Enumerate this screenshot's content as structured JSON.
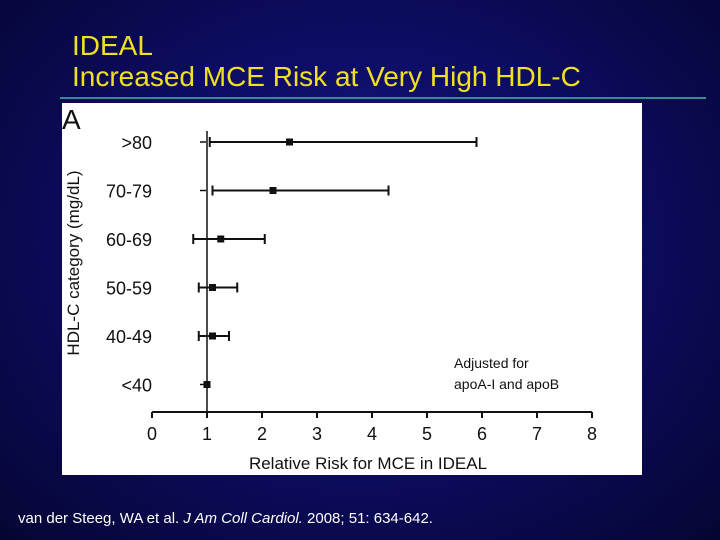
{
  "slide": {
    "title_line1": "IDEAL",
    "title_line2": "Increased MCE Risk at Very High HDL-C",
    "citation_authors": "van der Steeg, WA et al. ",
    "citation_journal": "J Am Coll Cardiol.",
    "citation_details": " 2008; 51: 634-642."
  },
  "colors": {
    "background": "#0d0d66",
    "title": "#f0e020",
    "title_rule": "#2f8f8f",
    "citation": "#ffffff",
    "plot_ink": "#111111"
  },
  "chart_data": {
    "type": "forest-plot",
    "panel_label": "A",
    "title": "",
    "xlabel": "Relative Risk for MCE in IDEAL",
    "ylabel": "HDL-C category (mg/dL)",
    "xlim": [
      0,
      8
    ],
    "x_ticks": [
      "0",
      "1",
      "2",
      "3",
      "4",
      "5",
      "6",
      "7",
      "8"
    ],
    "reference_line_x": 1,
    "categories": [
      ">80",
      "70-79",
      "60-69",
      "50-59",
      "40-49",
      "<40"
    ],
    "estimates": [
      2.5,
      2.2,
      1.25,
      1.1,
      1.1,
      1.0
    ],
    "ci_lower": [
      1.05,
      1.1,
      0.75,
      0.85,
      0.85,
      1.0
    ],
    "ci_upper": [
      5.9,
      4.3,
      2.05,
      1.55,
      1.4,
      1.0
    ],
    "annotation_line1": "Adjusted for",
    "annotation_line2": "apoA-I and apoB"
  }
}
